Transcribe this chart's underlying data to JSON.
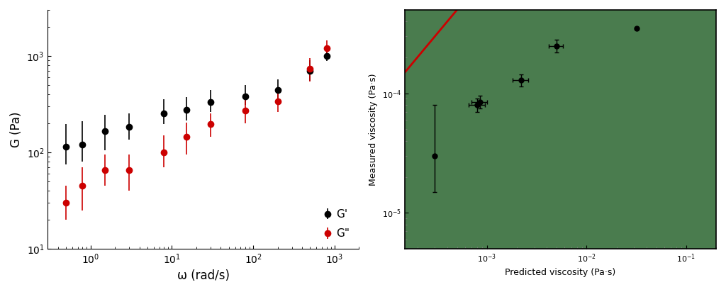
{
  "left_plot": {
    "G_prime_x": [
      0.5,
      0.8,
      1.5,
      3.0,
      8.0,
      15.0,
      30.0,
      80.0,
      200.0,
      500.0,
      800.0
    ],
    "G_prime_y": [
      115,
      120,
      165,
      185,
      255,
      275,
      330,
      380,
      440,
      700,
      1000
    ],
    "G_prime_yerr_low": [
      40,
      40,
      60,
      50,
      60,
      60,
      70,
      70,
      80,
      150,
      120
    ],
    "G_prime_yerr_high": [
      80,
      90,
      80,
      70,
      100,
      100,
      110,
      120,
      130,
      200,
      200
    ],
    "G_double_prime_x": [
      0.5,
      0.8,
      1.5,
      3.0,
      8.0,
      15.0,
      30.0,
      80.0,
      200.0,
      500.0,
      800.0
    ],
    "G_double_prime_y": [
      30,
      45,
      65,
      65,
      100,
      145,
      195,
      270,
      340,
      740,
      1200
    ],
    "G_double_prime_yerr_low": [
      10,
      20,
      20,
      25,
      30,
      50,
      50,
      70,
      80,
      200,
      200
    ],
    "G_double_prime_yerr_high": [
      15,
      25,
      30,
      30,
      50,
      60,
      60,
      80,
      100,
      200,
      250
    ],
    "xlim": [
      0.3,
      2000
    ],
    "ylim": [
      10,
      3000
    ],
    "xlabel": "ω (rad/s)",
    "ylabel": "G (Pa)",
    "G_prime_color": "#000000",
    "G_double_prime_color": "#cc0000",
    "legend_G_prime": "G'",
    "legend_G_double_prime": "G\""
  },
  "right_plot": {
    "x": [
      0.0003,
      0.0008,
      0.00085,
      0.0022,
      0.005,
      0.032
    ],
    "y": [
      3e-05,
      8e-05,
      8.5e-05,
      0.00013,
      0.00025,
      0.00035
    ],
    "xerr_low": [
      0.0,
      0.00015,
      0.00015,
      0.0004,
      0.0008,
      0.0
    ],
    "xerr_high": [
      0.0,
      0.00015,
      0.00015,
      0.0004,
      0.0008,
      0.0
    ],
    "yerr_low": [
      1.5e-05,
      1e-05,
      1e-05,
      1.5e-05,
      3e-05,
      0.0
    ],
    "yerr_high": [
      5e-05,
      1e-05,
      1e-05,
      1.5e-05,
      3e-05,
      0.0
    ],
    "line_x": [
      5e-06,
      0.1
    ],
    "line_y": [
      5e-06,
      0.1
    ],
    "xlim": [
      0.00015,
      0.2
    ],
    "ylim": [
      5e-06,
      0.0005
    ],
    "xlabel": "Predicted viscosity (Pa·s)",
    "ylabel": "Measured viscosity (Pa·s)",
    "line_color": "#cc0000",
    "point_color": "#000000",
    "background_color": "#4a7c4e",
    "yticks": [
      1e-05,
      0.0001
    ],
    "xticks": [
      0.001,
      0.01,
      0.1
    ]
  }
}
